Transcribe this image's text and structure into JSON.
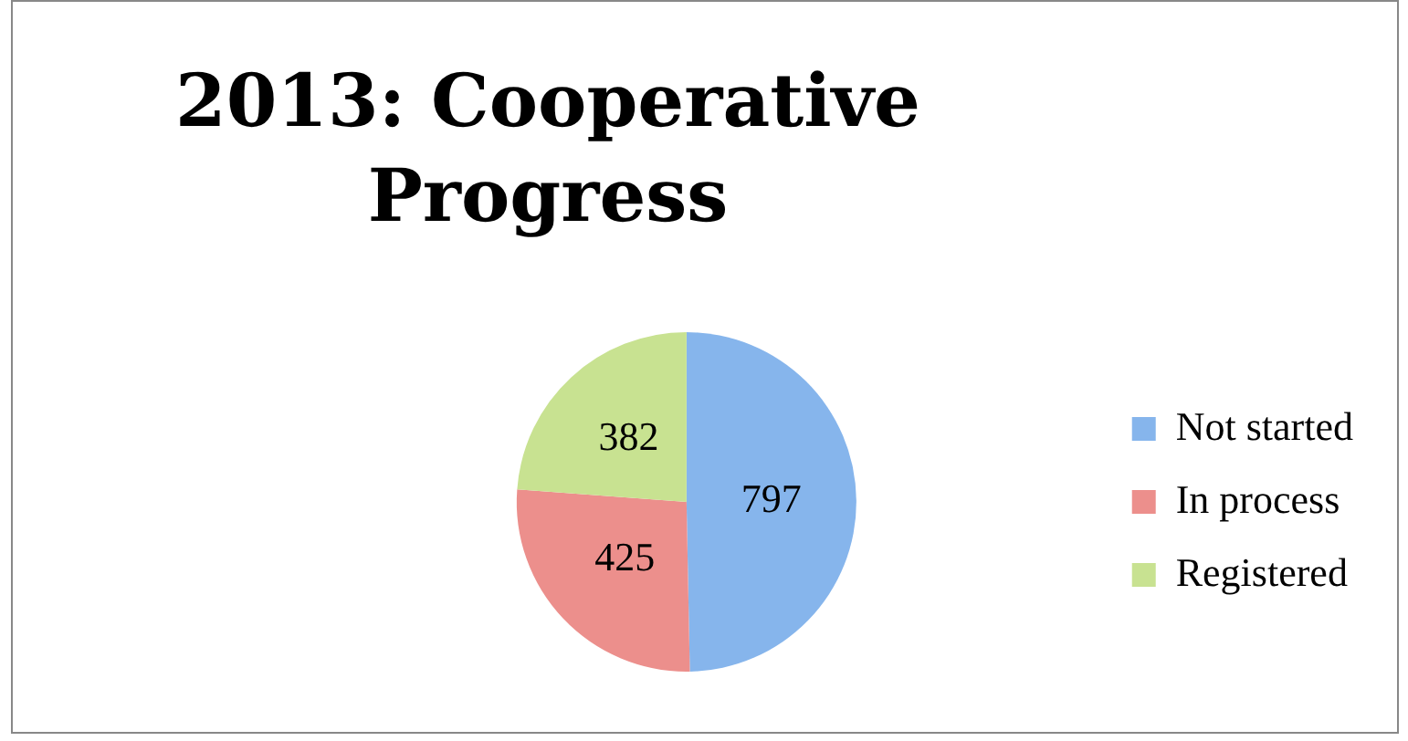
{
  "chart_data": {
    "type": "pie",
    "title": "2013: Cooperative Progress",
    "categories": [
      "Not started",
      "In process",
      "Registered"
    ],
    "values": [
      797,
      425,
      382
    ],
    "colors": [
      "#86b5ec",
      "#ec8f8c",
      "#c8e291"
    ],
    "data_labels": true,
    "legend": "right"
  }
}
